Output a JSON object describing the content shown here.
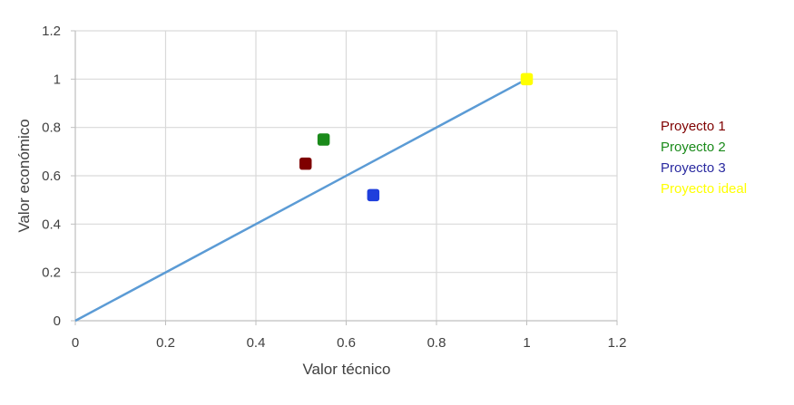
{
  "chart_data": {
    "type": "scatter",
    "title": "",
    "xlabel": "Valor técnico",
    "ylabel": "Valor económico",
    "xlim": [
      0,
      1.2
    ],
    "ylim": [
      0,
      1.2
    ],
    "x_ticks": [
      0,
      0.2,
      0.4,
      0.6,
      0.8,
      1,
      1.2
    ],
    "y_ticks": [
      0,
      0.2,
      0.4,
      0.6,
      0.8,
      1,
      1.2
    ],
    "grid": true,
    "legend_position": "right",
    "series": [
      {
        "name": "Proyecto 1",
        "color": "#7f0000",
        "x": [
          0.51
        ],
        "y": [
          0.65
        ]
      },
      {
        "name": "Proyecto 2",
        "color": "#1a8a1a",
        "x": [
          0.55
        ],
        "y": [
          0.75
        ]
      },
      {
        "name": "Proyecto 3",
        "color": "#1f3fdc",
        "x": [
          0.66
        ],
        "y": [
          0.52
        ]
      },
      {
        "name": "Proyecto ideal",
        "color": "#ffff00",
        "x": [
          1.0
        ],
        "y": [
          1.0
        ]
      }
    ],
    "reference_line": {
      "color": "#5b9bd5",
      "x": [
        0,
        1
      ],
      "y": [
        0,
        1
      ]
    },
    "legend_text_colors": [
      "#7f0000",
      "#1a8a1a",
      "#2a2aa0",
      "#ffff00"
    ]
  }
}
